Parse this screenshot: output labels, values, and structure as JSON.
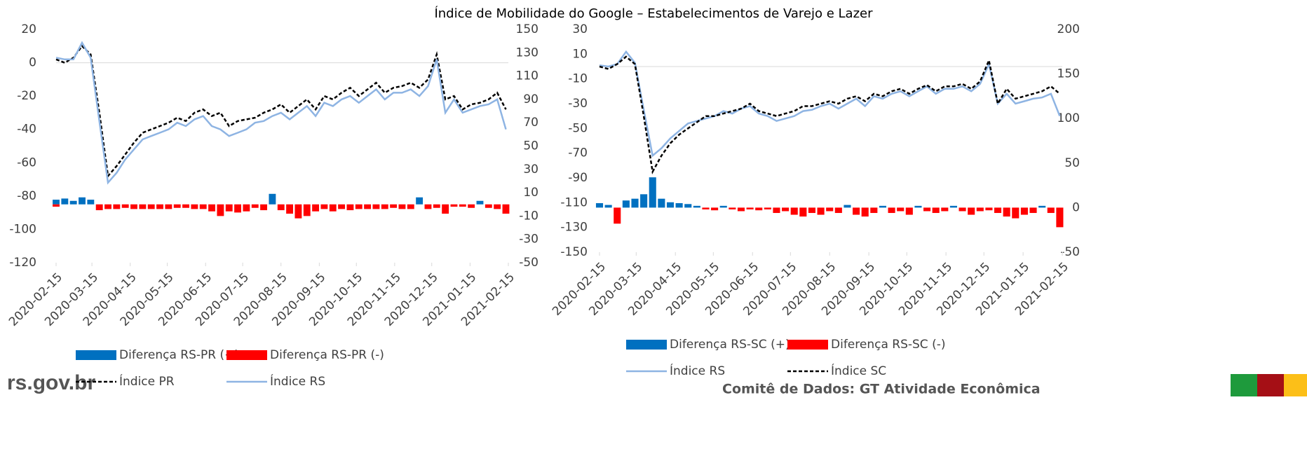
{
  "subtitle": "Índice de Mobilidade do Google – Estabelecimentos de Varejo e Lazer",
  "footer": {
    "site": "rs.gov.br",
    "credit": "Comitê de Dados: GT Atividade Econômica"
  },
  "chart_data": [
    {
      "type": "combo",
      "x": [
        "2020-02-15",
        "2020-02-22",
        "2020-02-29",
        "2020-03-07",
        "2020-03-14",
        "2020-03-21",
        "2020-03-28",
        "2020-04-04",
        "2020-04-11",
        "2020-04-18",
        "2020-04-25",
        "2020-05-02",
        "2020-05-09",
        "2020-05-16",
        "2020-05-23",
        "2020-05-30",
        "2020-06-06",
        "2020-06-13",
        "2020-06-20",
        "2020-06-27",
        "2020-07-04",
        "2020-07-11",
        "2020-07-18",
        "2020-07-25",
        "2020-08-01",
        "2020-08-08",
        "2020-08-15",
        "2020-08-22",
        "2020-08-29",
        "2020-09-05",
        "2020-09-12",
        "2020-09-19",
        "2020-09-26",
        "2020-10-03",
        "2020-10-10",
        "2020-10-17",
        "2020-10-24",
        "2020-10-31",
        "2020-11-07",
        "2020-11-14",
        "2020-11-21",
        "2020-11-28",
        "2020-12-05",
        "2020-12-12",
        "2020-12-19",
        "2020-12-26",
        "2021-01-02",
        "2021-01-09",
        "2021-01-16",
        "2021-01-23",
        "2021-01-30",
        "2021-02-06",
        "2021-02-13"
      ],
      "xlim": [
        "2020-02-15",
        "2021-02-15"
      ],
      "xticks": [
        "2020-02-15",
        "2020-03-15",
        "2020-04-15",
        "2020-05-15",
        "2020-06-15",
        "2020-07-15",
        "2020-08-15",
        "2020-09-15",
        "2020-10-15",
        "2020-11-15",
        "2020-12-15",
        "2021-01-15",
        "2021-02-15"
      ],
      "ylim": [
        -120,
        20
      ],
      "yticks": [
        -120,
        -100,
        -80,
        -60,
        -40,
        -20,
        0,
        20
      ],
      "y2lim": [
        -50,
        150
      ],
      "y2ticks": [
        -50,
        -30,
        -10,
        10,
        30,
        50,
        70,
        90,
        110,
        130,
        150
      ],
      "series": [
        {
          "name": "Diferença RS-PR (+)",
          "type": "bar",
          "axis": "y2",
          "color": "#0070c0",
          "values": [
            4,
            5,
            3,
            6,
            4,
            null,
            null,
            null,
            null,
            null,
            null,
            null,
            null,
            null,
            null,
            null,
            null,
            null,
            null,
            null,
            null,
            null,
            null,
            null,
            null,
            9,
            null,
            null,
            null,
            null,
            null,
            null,
            null,
            null,
            null,
            null,
            null,
            null,
            null,
            null,
            null,
            null,
            6,
            null,
            null,
            null,
            null,
            null,
            null,
            3,
            null,
            null,
            null
          ]
        },
        {
          "name": "Diferença RS-PR (-)",
          "type": "bar",
          "axis": "y2",
          "color": "#ff0000",
          "values": [
            -2,
            null,
            null,
            null,
            null,
            -5,
            -4,
            -4,
            -3,
            -4,
            -4,
            -4,
            -4,
            -4,
            -3,
            -3,
            -4,
            -4,
            -6,
            -10,
            -6,
            -7,
            -6,
            -3,
            -5,
            null,
            -5,
            -8,
            -12,
            -10,
            -6,
            -4,
            -6,
            -4,
            -5,
            -4,
            -4,
            -4,
            -4,
            -3,
            -4,
            -4,
            null,
            -4,
            -3,
            -8,
            -2,
            -2,
            -3,
            null,
            -3,
            -4,
            -8
          ]
        },
        {
          "name": "Índice PR",
          "type": "line",
          "axis": "y",
          "color": "#000000",
          "dashed": true,
          "values": [
            2,
            0,
            3,
            10,
            5,
            -30,
            -68,
            -62,
            -55,
            -48,
            -42,
            -40,
            -38,
            -36,
            -33,
            -35,
            -30,
            -28,
            -32,
            -30,
            -38,
            -35,
            -34,
            -33,
            -30,
            -28,
            -25,
            -30,
            -26,
            -22,
            -28,
            -20,
            -22,
            -18,
            -15,
            -20,
            -16,
            -12,
            -18,
            -15,
            -14,
            -12,
            -15,
            -10,
            5,
            -22,
            -20,
            -28,
            -25,
            -24,
            -22,
            -18,
            -28
          ]
        },
        {
          "name": "Índice RS",
          "type": "line",
          "axis": "y",
          "color": "#8eb4e3",
          "dashed": false,
          "values": [
            3,
            2,
            2,
            12,
            3,
            -35,
            -72,
            -66,
            -58,
            -52,
            -46,
            -44,
            -42,
            -40,
            -36,
            -38,
            -34,
            -32,
            -38,
            -40,
            -44,
            -42,
            -40,
            -36,
            -35,
            -32,
            -30,
            -34,
            -30,
            -26,
            -32,
            -24,
            -26,
            -22,
            -20,
            -24,
            -20,
            -16,
            -22,
            -18,
            -18,
            -16,
            -20,
            -14,
            2,
            -30,
            -22,
            -30,
            -28,
            -26,
            -25,
            -22,
            -40
          ]
        }
      ]
    },
    {
      "type": "combo",
      "x": [
        "2020-02-15",
        "2020-02-22",
        "2020-02-29",
        "2020-03-07",
        "2020-03-14",
        "2020-03-21",
        "2020-03-28",
        "2020-04-04",
        "2020-04-11",
        "2020-04-18",
        "2020-04-25",
        "2020-05-02",
        "2020-05-09",
        "2020-05-16",
        "2020-05-23",
        "2020-05-30",
        "2020-06-06",
        "2020-06-13",
        "2020-06-20",
        "2020-06-27",
        "2020-07-04",
        "2020-07-11",
        "2020-07-18",
        "2020-07-25",
        "2020-08-01",
        "2020-08-08",
        "2020-08-15",
        "2020-08-22",
        "2020-08-29",
        "2020-09-05",
        "2020-09-12",
        "2020-09-19",
        "2020-09-26",
        "2020-10-03",
        "2020-10-10",
        "2020-10-17",
        "2020-10-24",
        "2020-10-31",
        "2020-11-07",
        "2020-11-14",
        "2020-11-21",
        "2020-11-28",
        "2020-12-05",
        "2020-12-12",
        "2020-12-19",
        "2020-12-26",
        "2021-01-02",
        "2021-01-09",
        "2021-01-16",
        "2021-01-23",
        "2021-01-30",
        "2021-02-06",
        "2021-02-13"
      ],
      "xlim": [
        "2020-02-15",
        "2021-02-15"
      ],
      "xticks": [
        "2020-02-15",
        "2020-03-15",
        "2020-04-15",
        "2020-05-15",
        "2020-06-15",
        "2020-07-15",
        "2020-08-15",
        "2020-09-15",
        "2020-10-15",
        "2020-11-15",
        "2020-12-15",
        "2021-01-15",
        "2021-02-15"
      ],
      "ylim": [
        -150,
        30
      ],
      "yticks": [
        -150,
        -130,
        -110,
        -90,
        -70,
        -50,
        -30,
        -10,
        10,
        30
      ],
      "y2lim": [
        -50,
        200
      ],
      "y2ticks": [
        -50,
        0,
        50,
        100,
        150,
        200
      ],
      "series": [
        {
          "name": "Diferença RS-SC (+)",
          "type": "bar",
          "axis": "y2",
          "color": "#0070c0",
          "values": [
            5,
            3,
            null,
            8,
            10,
            15,
            34,
            10,
            6,
            5,
            4,
            2,
            null,
            null,
            2,
            null,
            null,
            null,
            null,
            null,
            null,
            null,
            null,
            null,
            null,
            null,
            null,
            null,
            3,
            null,
            null,
            null,
            2,
            null,
            null,
            null,
            2,
            null,
            null,
            null,
            2,
            null,
            null,
            null,
            null,
            null,
            null,
            null,
            null,
            null,
            2,
            null,
            null
          ]
        },
        {
          "name": "Diferença RS-SC (-)",
          "type": "bar",
          "axis": "y2",
          "color": "#ff0000",
          "values": [
            null,
            null,
            -18,
            null,
            null,
            null,
            null,
            null,
            null,
            null,
            null,
            null,
            -2,
            -3,
            null,
            -2,
            -4,
            -2,
            -3,
            -2,
            -6,
            -4,
            -8,
            -10,
            -6,
            -8,
            -4,
            -6,
            null,
            -8,
            -10,
            -6,
            null,
            -6,
            -4,
            -8,
            null,
            -4,
            -6,
            -4,
            null,
            -4,
            -8,
            -4,
            -3,
            -6,
            -10,
            -12,
            -8,
            -6,
            null,
            -6,
            -22
          ]
        },
        {
          "name": "Índice RS",
          "type": "line",
          "axis": "y",
          "color": "#8eb4e3",
          "dashed": false,
          "values": [
            1,
            0,
            2,
            12,
            3,
            -35,
            -72,
            -66,
            -58,
            -52,
            -46,
            -44,
            -42,
            -40,
            -36,
            -38,
            -34,
            -32,
            -38,
            -40,
            -44,
            -42,
            -40,
            -36,
            -35,
            -32,
            -30,
            -34,
            -30,
            -26,
            -32,
            -24,
            -26,
            -22,
            -20,
            -24,
            -20,
            -16,
            -22,
            -18,
            -18,
            -16,
            -20,
            -14,
            2,
            -30,
            -22,
            -30,
            -28,
            -26,
            -25,
            -22,
            -40
          ]
        },
        {
          "name": "Índice SC",
          "type": "line",
          "axis": "y",
          "color": "#000000",
          "dashed": true,
          "values": [
            0,
            -2,
            2,
            8,
            2,
            -40,
            -85,
            -72,
            -62,
            -55,
            -50,
            -45,
            -40,
            -40,
            -38,
            -36,
            -34,
            -30,
            -36,
            -38,
            -40,
            -38,
            -36,
            -32,
            -32,
            -30,
            -28,
            -30,
            -26,
            -24,
            -28,
            -22,
            -24,
            -20,
            -18,
            -22,
            -18,
            -15,
            -20,
            -16,
            -16,
            -14,
            -18,
            -12,
            5,
            -30,
            -18,
            -26,
            -24,
            -22,
            -20,
            -16,
            -22
          ]
        }
      ]
    }
  ]
}
